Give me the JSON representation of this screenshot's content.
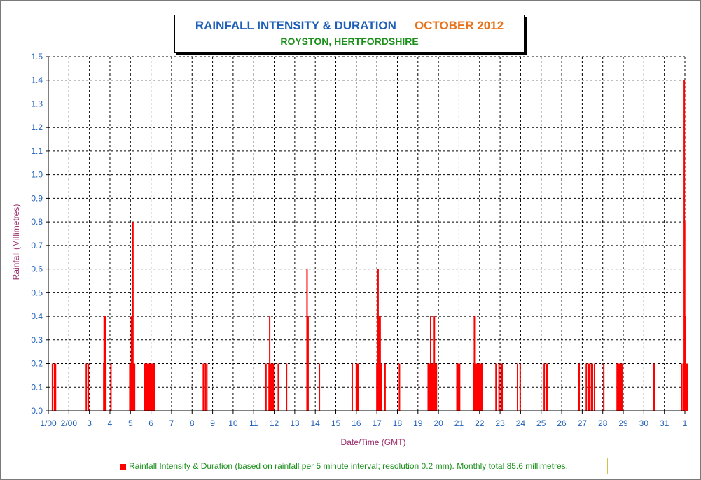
{
  "title": "RAINFALL INTENSITY & DURATION",
  "month": "OCTOBER 2012",
  "subtitle": "ROYSTON, HERTFORDSHIRE",
  "legend": "Rainfall Intensity & Duration (based on rainfall per 5 minute interval; resolution 0.2 mm). Monthly total 85.6 millimetres.",
  "colors": {
    "bar": "#ff0000",
    "title": "#1f5fb8",
    "month": "#e8731c",
    "subtitle": "#1a8f1a",
    "axis_title": "#9b2a6b",
    "tick": "#1f5fb8"
  },
  "chart_data": {
    "type": "bar",
    "xlabel": "Date/Time (GMT)",
    "ylabel": "Rainfall (Millimetres)",
    "ylim": [
      0,
      1.5
    ],
    "yticks": [
      "0.0",
      "0.1",
      "0.2",
      "0.3",
      "0.4",
      "0.5",
      "0.6",
      "0.7",
      "0.8",
      "0.9",
      "1.0",
      "1.1",
      "1.2",
      "1.3",
      "1.4",
      "1.5"
    ],
    "xlim_days": [
      1,
      32
    ],
    "xticks": [
      "1/00",
      "2/00",
      "3",
      "4",
      "5",
      "6",
      "7",
      "8",
      "9",
      "10",
      "11",
      "12",
      "13",
      "14",
      "15",
      "16",
      "17",
      "18",
      "19",
      "20",
      "21",
      "22",
      "23",
      "24",
      "25",
      "26",
      "27",
      "28",
      "29",
      "30",
      "31",
      "1"
    ],
    "grid": true,
    "legend_position": "bottom",
    "series": [
      {
        "name": "Rainfall Intensity & Duration (based on rainfall per 5 minute interval; resolution 0.2 mm). Monthly total 85.6 millimetres.",
        "points": [
          [
            1.2,
            0.2
          ],
          [
            1.3,
            0.2
          ],
          [
            1.35,
            0.2
          ],
          [
            2.85,
            0.2
          ],
          [
            2.95,
            0.2
          ],
          [
            3.7,
            0.2
          ],
          [
            3.72,
            0.4
          ],
          [
            3.75,
            0.2
          ],
          [
            3.77,
            0.4
          ],
          [
            3.8,
            0.2
          ],
          [
            4.05,
            0.2
          ],
          [
            4.97,
            0.2
          ],
          [
            5.0,
            0.2
          ],
          [
            5.03,
            0.2
          ],
          [
            5.05,
            0.4
          ],
          [
            5.07,
            0.2
          ],
          [
            5.1,
            0.2
          ],
          [
            5.12,
            0.8
          ],
          [
            5.15,
            0.2
          ],
          [
            5.18,
            0.2
          ],
          [
            5.2,
            0.2
          ],
          [
            5.7,
            0.2
          ],
          [
            5.73,
            0.2
          ],
          [
            5.76,
            0.2
          ],
          [
            5.8,
            0.2
          ],
          [
            5.83,
            0.2
          ],
          [
            5.86,
            0.2
          ],
          [
            5.9,
            0.2
          ],
          [
            5.93,
            0.2
          ],
          [
            5.96,
            0.2
          ],
          [
            6.0,
            0.2
          ],
          [
            6.03,
            0.2
          ],
          [
            6.06,
            0.2
          ],
          [
            6.1,
            0.2
          ],
          [
            6.13,
            0.2
          ],
          [
            6.16,
            0.2
          ],
          [
            8.55,
            0.2
          ],
          [
            8.65,
            0.2
          ],
          [
            8.72,
            0.2
          ],
          [
            11.6,
            0.2
          ],
          [
            11.75,
            0.2
          ],
          [
            11.78,
            0.4
          ],
          [
            11.82,
            0.2
          ],
          [
            11.88,
            0.2
          ],
          [
            11.92,
            0.2
          ],
          [
            11.96,
            0.2
          ],
          [
            12.2,
            0.2
          ],
          [
            12.6,
            0.2
          ],
          [
            13.6,
            0.6
          ],
          [
            13.65,
            0.4
          ],
          [
            14.2,
            0.2
          ],
          [
            15.8,
            0.2
          ],
          [
            16.0,
            0.2
          ],
          [
            16.05,
            0.2
          ],
          [
            16.1,
            0.2
          ],
          [
            17.0,
            0.2
          ],
          [
            17.03,
            0.2
          ],
          [
            17.06,
            0.6
          ],
          [
            17.1,
            0.4
          ],
          [
            17.13,
            0.2
          ],
          [
            17.16,
            0.4
          ],
          [
            17.2,
            0.2
          ],
          [
            17.4,
            0.2
          ],
          [
            18.1,
            0.2
          ],
          [
            19.5,
            0.2
          ],
          [
            19.58,
            0.2
          ],
          [
            19.62,
            0.4
          ],
          [
            19.65,
            0.2
          ],
          [
            19.68,
            0.2
          ],
          [
            19.72,
            0.2
          ],
          [
            19.76,
            0.2
          ],
          [
            19.8,
            0.4
          ],
          [
            19.83,
            0.2
          ],
          [
            19.86,
            0.2
          ],
          [
            19.9,
            0.2
          ],
          [
            20.9,
            0.2
          ],
          [
            20.93,
            0.2
          ],
          [
            20.96,
            0.2
          ],
          [
            21.0,
            0.2
          ],
          [
            21.03,
            0.2
          ],
          [
            21.7,
            0.2
          ],
          [
            21.73,
            0.2
          ],
          [
            21.75,
            0.4
          ],
          [
            21.78,
            0.2
          ],
          [
            21.82,
            0.2
          ],
          [
            21.86,
            0.2
          ],
          [
            21.9,
            0.2
          ],
          [
            21.94,
            0.2
          ],
          [
            21.98,
            0.2
          ],
          [
            22.02,
            0.2
          ],
          [
            22.06,
            0.2
          ],
          [
            22.1,
            0.2
          ],
          [
            22.13,
            0.2
          ],
          [
            22.8,
            0.2
          ],
          [
            22.95,
            0.2
          ],
          [
            23.05,
            0.2
          ],
          [
            23.1,
            0.2
          ],
          [
            23.85,
            0.2
          ],
          [
            23.98,
            0.2
          ],
          [
            25.15,
            0.2
          ],
          [
            25.25,
            0.2
          ],
          [
            25.3,
            0.2
          ],
          [
            26.85,
            0.2
          ],
          [
            27.2,
            0.2
          ],
          [
            27.3,
            0.2
          ],
          [
            27.35,
            0.2
          ],
          [
            27.45,
            0.2
          ],
          [
            27.5,
            0.2
          ],
          [
            27.6,
            0.2
          ],
          [
            28.05,
            0.2
          ],
          [
            28.7,
            0.2
          ],
          [
            28.73,
            0.2
          ],
          [
            28.76,
            0.2
          ],
          [
            28.8,
            0.2
          ],
          [
            28.83,
            0.2
          ],
          [
            28.86,
            0.2
          ],
          [
            28.9,
            0.2
          ],
          [
            28.93,
            0.2
          ],
          [
            30.5,
            0.2
          ],
          [
            31.85,
            0.2
          ],
          [
            31.93,
            0.2
          ],
          [
            31.95,
            0.2
          ],
          [
            31.97,
            1.4
          ],
          [
            31.99,
            0.8
          ],
          [
            32.01,
            0.2
          ],
          [
            32.03,
            0.4
          ],
          [
            32.06,
            0.2
          ],
          [
            32.09,
            0.2
          ],
          [
            32.12,
            0.2
          ]
        ]
      }
    ]
  }
}
